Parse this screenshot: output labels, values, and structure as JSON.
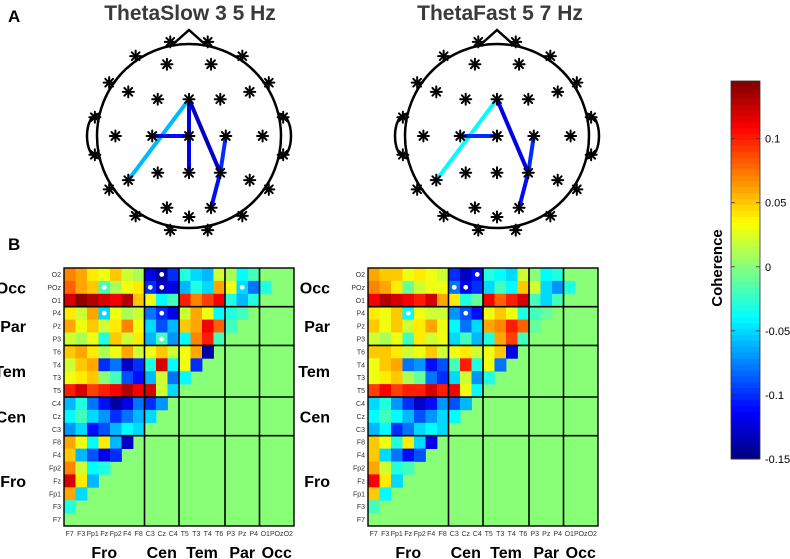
{
  "panels": {
    "a": "A",
    "b": "B"
  },
  "colorbar": {
    "label": "Coherence",
    "ticks": [
      "0.1",
      "0.05",
      "0",
      "-0.05",
      "-0.1",
      "-0.15"
    ],
    "tick_values": [
      0.1,
      0.05,
      0,
      -0.05,
      -0.1,
      -0.15
    ],
    "range": [
      -0.15,
      0.145
    ]
  },
  "chart_data": [
    {
      "type": "heatmap",
      "title": "ThetaSlow 3 5 Hz",
      "x_tick_labels": [
        "F7",
        "F3",
        "Fp1",
        "Fz",
        "Fp2",
        "F4",
        "F8",
        "C3",
        "Cz",
        "C4",
        "T5",
        "T3",
        "T4",
        "T6",
        "P3",
        "Pz",
        "P4",
        "O1",
        "POz",
        "O2"
      ],
      "y_tick_labels": [
        "O2",
        "POz",
        "O1",
        "P4",
        "Pz",
        "P3",
        "T6",
        "T4",
        "T3",
        "T5",
        "C4",
        "Cz",
        "C3",
        "F8",
        "F4",
        "Fp2",
        "Fz",
        "Fp1",
        "F3",
        "F7"
      ],
      "x_groups": [
        "Fro",
        "Cen",
        "Tem",
        "Par",
        "Occ"
      ],
      "y_groups": [
        "Occ",
        "Par",
        "Tem",
        "Cen",
        "Fro"
      ],
      "topomap": "ThetaSlow 3 5 Hz",
      "matrix": [
        [
          0.07,
          0.06,
          0.04,
          0.03,
          0.05,
          0.02,
          0.01,
          -0.12,
          -0.14,
          -0.1,
          -0.03,
          -0.05,
          -0.06,
          0.02,
          0.01,
          -0.04,
          -0.02,
          null,
          null,
          null
        ],
        [
          0.08,
          0.06,
          0.05,
          -0.02,
          0.01,
          0.03,
          0.04,
          -0.1,
          -0.13,
          -0.12,
          -0.06,
          -0.03,
          -0.05,
          0.06,
          0.03,
          -0.05,
          -0.08,
          -0.03,
          null,
          null
        ],
        [
          0.12,
          0.14,
          0.13,
          0.12,
          0.11,
          0.13,
          0.05,
          0.03,
          -0.04,
          -0.02,
          0.1,
          0.07,
          0.09,
          0.11,
          -0.03,
          -0.06,
          -0.03,
          null,
          null,
          null
        ],
        [
          0.04,
          0.02,
          0.06,
          -0.05,
          0.03,
          0.01,
          0.02,
          -0.08,
          -0.1,
          -0.12,
          0.02,
          0.06,
          0.03,
          -0.04,
          -0.03,
          -0.02,
          null,
          null,
          null,
          null
        ],
        [
          0.06,
          0.03,
          0.05,
          0.02,
          0.04,
          0.07,
          0.03,
          -0.05,
          -0.09,
          -0.06,
          0.05,
          0.06,
          0.11,
          0.08,
          -0.02,
          null,
          null,
          null,
          null,
          null
        ],
        [
          0.02,
          0.01,
          0.03,
          -0.03,
          0.05,
          0.02,
          0.04,
          -0.06,
          -0.02,
          -0.07,
          -0.04,
          0.07,
          0.1,
          -0.02,
          null,
          null,
          null,
          null,
          null,
          null
        ],
        [
          0.05,
          0.06,
          0.04,
          0.01,
          0.03,
          0.06,
          0.02,
          0.03,
          0.05,
          0.02,
          0.03,
          0.06,
          -0.14,
          null,
          null,
          null,
          null,
          null,
          null,
          null
        ],
        [
          0.02,
          0.05,
          0.06,
          -0.1,
          -0.08,
          -0.13,
          -0.1,
          -0.03,
          0.12,
          -0.04,
          0.03,
          -0.1,
          null,
          null,
          null,
          null,
          null,
          null,
          null,
          null
        ],
        [
          0.03,
          0.04,
          0.05,
          0.0,
          -0.02,
          -0.09,
          -0.11,
          -0.06,
          0.02,
          -0.08,
          -0.04,
          null,
          null,
          null,
          null,
          null,
          null,
          null,
          null,
          null
        ],
        [
          0.1,
          0.12,
          0.09,
          0.1,
          0.11,
          0.13,
          0.11,
          0.12,
          0.02,
          -0.05,
          null,
          null,
          null,
          null,
          null,
          null,
          null,
          null,
          null,
          null
        ],
        [
          -0.06,
          -0.03,
          -0.08,
          -0.11,
          -0.14,
          -0.12,
          -0.08,
          -0.1,
          -0.07,
          null,
          null,
          null,
          null,
          null,
          null,
          null,
          null,
          null,
          null,
          null
        ],
        [
          -0.04,
          -0.02,
          -0.05,
          -0.07,
          -0.1,
          -0.08,
          -0.06,
          -0.05,
          null,
          null,
          null,
          null,
          null,
          null,
          null,
          null,
          null,
          null,
          null,
          null
        ],
        [
          -0.07,
          -0.05,
          -0.11,
          -0.09,
          -0.06,
          -0.04,
          -0.05,
          null,
          null,
          null,
          null,
          null,
          null,
          null,
          null,
          null,
          null,
          null,
          null,
          null
        ],
        [
          0.06,
          0.03,
          -0.04,
          0.04,
          -0.06,
          -0.13,
          null,
          null,
          null,
          null,
          null,
          null,
          null,
          null,
          null,
          null,
          null,
          null,
          null,
          null
        ],
        [
          0.05,
          -0.06,
          -0.09,
          -0.12,
          -0.1,
          null,
          null,
          null,
          null,
          null,
          null,
          null,
          null,
          null,
          null,
          null,
          null,
          null,
          null,
          null
        ],
        [
          0.07,
          0.02,
          -0.04,
          -0.03,
          null,
          null,
          null,
          null,
          null,
          null,
          null,
          null,
          null,
          null,
          null,
          null,
          null,
          null,
          null,
          null
        ],
        [
          0.12,
          0.04,
          -0.06,
          null,
          null,
          null,
          null,
          null,
          null,
          null,
          null,
          null,
          null,
          null,
          null,
          null,
          null,
          null,
          null,
          null
        ],
        [
          0.06,
          -0.05,
          null,
          null,
          null,
          null,
          null,
          null,
          null,
          null,
          null,
          null,
          null,
          null,
          null,
          null,
          null,
          null,
          null,
          null
        ],
        [
          -0.03,
          null,
          null,
          null,
          null,
          null,
          null,
          null,
          null,
          null,
          null,
          null,
          null,
          null,
          null,
          null,
          null,
          null,
          null,
          null
        ],
        [
          null,
          null,
          null,
          null,
          null,
          null,
          null,
          null,
          null,
          null,
          null,
          null,
          null,
          null,
          null,
          null,
          null,
          null,
          null,
          null
        ]
      ],
      "significant": [
        [
          1,
          3
        ],
        [
          1,
          7
        ],
        [
          1,
          8
        ],
        [
          0,
          8
        ],
        [
          3,
          3
        ],
        [
          3,
          8
        ],
        [
          5,
          8
        ],
        [
          1,
          15
        ]
      ]
    },
    {
      "type": "heatmap",
      "title": "ThetaFast 5 7 Hz",
      "x_tick_labels": [
        "F7",
        "F3",
        "Fp1",
        "Fz",
        "Fp2",
        "F4",
        "F8",
        "C3",
        "Cz",
        "C4",
        "T5",
        "T3",
        "T4",
        "T6",
        "P3",
        "Pz",
        "P4",
        "O1",
        "POz",
        "O2"
      ],
      "y_tick_labels": [
        "O2",
        "POz",
        "O1",
        "P4",
        "Pz",
        "P3",
        "T6",
        "T4",
        "T3",
        "T5",
        "C4",
        "Cz",
        "C3",
        "F8",
        "F4",
        "Fp2",
        "Fz",
        "Fp1",
        "F3",
        "F7"
      ],
      "x_groups": [
        "Fro",
        "Cen",
        "Tem",
        "Par",
        "Occ"
      ],
      "y_groups": [
        "Occ",
        "Par",
        "Tem",
        "Cen",
        "Fro"
      ],
      "topomap": "ThetaFast 5 7 Hz",
      "matrix": [
        [
          0.06,
          0.05,
          0.05,
          0.03,
          0.04,
          0.03,
          0.02,
          -0.1,
          -0.13,
          -0.11,
          -0.03,
          -0.04,
          -0.05,
          0.02,
          0.0,
          -0.04,
          -0.03,
          null,
          null,
          null
        ],
        [
          0.07,
          0.06,
          0.04,
          -0.01,
          0.02,
          0.03,
          0.03,
          -0.08,
          -0.12,
          -0.1,
          -0.05,
          -0.02,
          -0.04,
          0.05,
          0.02,
          -0.05,
          -0.07,
          -0.03,
          null,
          null
        ],
        [
          0.11,
          0.13,
          0.12,
          0.11,
          0.1,
          0.12,
          0.06,
          0.04,
          -0.03,
          -0.01,
          0.11,
          0.08,
          0.1,
          0.12,
          -0.02,
          -0.05,
          -0.02,
          null,
          null,
          null
        ],
        [
          0.04,
          0.03,
          0.05,
          -0.04,
          0.03,
          0.02,
          0.02,
          -0.07,
          -0.09,
          -0.11,
          0.03,
          0.05,
          0.03,
          -0.03,
          -0.02,
          -0.01,
          null,
          null,
          null,
          null
        ],
        [
          0.05,
          0.03,
          0.05,
          0.02,
          0.04,
          0.06,
          0.03,
          -0.04,
          -0.08,
          -0.05,
          0.06,
          0.07,
          0.1,
          0.08,
          -0.01,
          null,
          null,
          null,
          null,
          null
        ],
        [
          0.02,
          0.01,
          0.03,
          -0.02,
          0.04,
          0.02,
          0.03,
          -0.05,
          -0.02,
          -0.06,
          -0.03,
          0.06,
          0.09,
          -0.02,
          null,
          null,
          null,
          null,
          null,
          null
        ],
        [
          0.05,
          0.05,
          0.04,
          0.02,
          0.03,
          0.05,
          0.02,
          0.03,
          0.04,
          0.02,
          0.03,
          0.05,
          -0.12,
          null,
          null,
          null,
          null,
          null,
          null,
          null
        ],
        [
          0.03,
          0.05,
          0.06,
          -0.08,
          -0.07,
          -0.11,
          -0.09,
          -0.02,
          0.1,
          -0.03,
          0.03,
          -0.08,
          null,
          null,
          null,
          null,
          null,
          null,
          null,
          null
        ],
        [
          0.03,
          0.04,
          0.05,
          0.01,
          -0.01,
          -0.08,
          -0.1,
          -0.05,
          0.02,
          -0.07,
          -0.03,
          null,
          null,
          null,
          null,
          null,
          null,
          null,
          null,
          null
        ],
        [
          0.09,
          0.11,
          0.09,
          0.1,
          0.1,
          0.12,
          0.1,
          0.11,
          0.03,
          -0.04,
          null,
          null,
          null,
          null,
          null,
          null,
          null,
          null,
          null,
          null
        ],
        [
          -0.05,
          -0.03,
          -0.07,
          -0.1,
          -0.13,
          -0.11,
          -0.07,
          -0.09,
          -0.06,
          null,
          null,
          null,
          null,
          null,
          null,
          null,
          null,
          null,
          null,
          null
        ],
        [
          -0.04,
          -0.02,
          -0.04,
          -0.06,
          -0.09,
          -0.07,
          -0.05,
          -0.04,
          null,
          null,
          null,
          null,
          null,
          null,
          null,
          null,
          null,
          null,
          null,
          null
        ],
        [
          -0.06,
          -0.04,
          -0.1,
          -0.08,
          -0.05,
          -0.04,
          -0.05,
          null,
          null,
          null,
          null,
          null,
          null,
          null,
          null,
          null,
          null,
          null,
          null,
          null
        ],
        [
          0.05,
          0.03,
          -0.03,
          0.04,
          -0.05,
          -0.12,
          null,
          null,
          null,
          null,
          null,
          null,
          null,
          null,
          null,
          null,
          null,
          null,
          null,
          null
        ],
        [
          0.05,
          -0.05,
          -0.08,
          -0.11,
          -0.09,
          null,
          null,
          null,
          null,
          null,
          null,
          null,
          null,
          null,
          null,
          null,
          null,
          null,
          null,
          null
        ],
        [
          0.06,
          0.02,
          -0.03,
          -0.02,
          null,
          null,
          null,
          null,
          null,
          null,
          null,
          null,
          null,
          null,
          null,
          null,
          null,
          null,
          null,
          null
        ],
        [
          0.11,
          0.04,
          -0.05,
          null,
          null,
          null,
          null,
          null,
          null,
          null,
          null,
          null,
          null,
          null,
          null,
          null,
          null,
          null,
          null,
          null
        ],
        [
          0.05,
          -0.04,
          null,
          null,
          null,
          null,
          null,
          null,
          null,
          null,
          null,
          null,
          null,
          null,
          null,
          null,
          null,
          null,
          null,
          null
        ],
        [
          -0.02,
          null,
          null,
          null,
          null,
          null,
          null,
          null,
          null,
          null,
          null,
          null,
          null,
          null,
          null,
          null,
          null,
          null,
          null,
          null
        ],
        [
          null,
          null,
          null,
          null,
          null,
          null,
          null,
          null,
          null,
          null,
          null,
          null,
          null,
          null,
          null,
          null,
          null,
          null,
          null,
          null
        ]
      ],
      "significant": [
        [
          1,
          7
        ],
        [
          1,
          8
        ],
        [
          0,
          9
        ],
        [
          3,
          3
        ],
        [
          3,
          8
        ]
      ]
    }
  ],
  "topomaps": [
    {
      "title": "ThetaSlow 3 5 Hz",
      "connections": [
        {
          "from": "Fz",
          "to": "T5",
          "value": -0.06
        },
        {
          "from": "Fz",
          "to": "Pz",
          "value": -0.12
        },
        {
          "from": "Fz",
          "to": "P4",
          "value": -0.13
        },
        {
          "from": "Cz",
          "to": "C3",
          "value": -0.11
        },
        {
          "from": "Cz",
          "to": "Pz",
          "value": -0.12
        },
        {
          "from": "C4",
          "to": "P4",
          "value": -0.1
        },
        {
          "from": "P4",
          "to": "O2",
          "value": -0.11
        }
      ]
    },
    {
      "title": "ThetaFast 5 7 Hz",
      "connections": [
        {
          "from": "Fz",
          "to": "T5",
          "value": -0.04
        },
        {
          "from": "Fz",
          "to": "P4",
          "value": -0.12
        },
        {
          "from": "Cz",
          "to": "C3",
          "value": -0.1
        },
        {
          "from": "C4",
          "to": "P4",
          "value": -0.1
        },
        {
          "from": "P4",
          "to": "O2",
          "value": -0.11
        }
      ]
    }
  ]
}
